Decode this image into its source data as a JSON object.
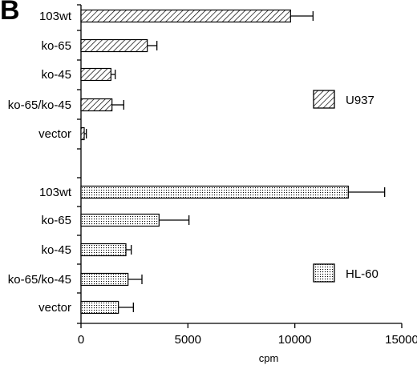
{
  "panel_label": "B",
  "chart_data": {
    "type": "bar",
    "orientation": "horizontal",
    "xlabel": "cpm",
    "ylabel": "",
    "xlim": [
      0,
      15000
    ],
    "xticks": [
      0,
      5000,
      10000,
      15000
    ],
    "grid": false,
    "legend_placement": "right",
    "groups": [
      {
        "name": "U937",
        "pattern": "hatch",
        "categories": [
          "103wt",
          "ko-65",
          "ko-45",
          "ko-65/ko-45",
          "vector"
        ],
        "values": [
          9800,
          3100,
          1400,
          1450,
          150
        ],
        "errors": [
          1050,
          450,
          200,
          550,
          100
        ]
      },
      {
        "name": "HL-60",
        "pattern": "dots",
        "categories": [
          "103wt",
          "ko-65",
          "ko-45",
          "ko-65/ko-45",
          "vector"
        ],
        "values": [
          12500,
          3650,
          2100,
          2200,
          1750
        ],
        "errors": [
          1700,
          1400,
          250,
          650,
          700
        ]
      }
    ]
  }
}
